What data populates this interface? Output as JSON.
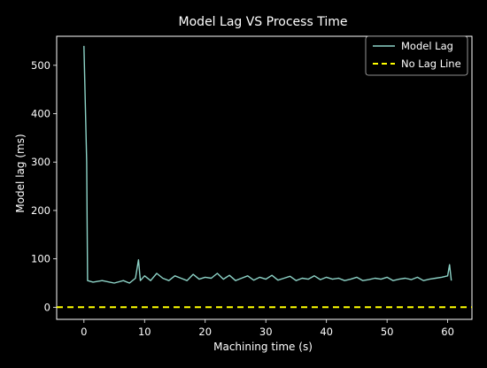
{
  "chart_data": {
    "type": "line",
    "title": "Model Lag VS Process Time",
    "xlabel": "Machining time (s)",
    "ylabel": "Model lag (ms)",
    "xlim": [
      -4.5,
      64
    ],
    "ylim": [
      -25,
      560
    ],
    "xticks": [
      0,
      10,
      20,
      30,
      40,
      50,
      60
    ],
    "yticks": [
      0,
      100,
      200,
      300,
      400,
      500
    ],
    "grid": false,
    "legend_position": "top-right",
    "background": "#000000",
    "series": [
      {
        "name": "Model Lag",
        "color": "#8dd3c7",
        "style": "solid",
        "x": [
          0,
          0.45,
          0.6,
          1.5,
          3,
          5,
          6.5,
          7.5,
          8.5,
          9.0,
          9.3,
          10,
          11,
          12,
          13,
          14,
          15,
          16,
          17,
          18,
          19,
          20,
          21,
          22,
          23,
          24,
          25,
          26,
          27,
          28,
          29,
          30,
          31,
          32,
          33,
          34,
          35,
          36,
          37,
          38,
          39,
          40,
          41,
          42,
          43,
          44,
          45,
          46,
          47,
          48,
          49,
          50,
          51,
          52,
          53,
          54,
          55,
          56,
          57,
          58,
          59,
          60,
          60.3,
          60.6
        ],
        "y": [
          540,
          300,
          55,
          52,
          55,
          50,
          55,
          50,
          60,
          98,
          55,
          65,
          55,
          70,
          60,
          55,
          65,
          60,
          55,
          68,
          58,
          62,
          60,
          70,
          58,
          66,
          55,
          60,
          65,
          56,
          62,
          58,
          66,
          56,
          60,
          64,
          55,
          60,
          58,
          65,
          57,
          62,
          58,
          60,
          55,
          58,
          62,
          55,
          57,
          60,
          58,
          62,
          55,
          58,
          60,
          57,
          62,
          55,
          58,
          60,
          62,
          65,
          88,
          55
        ]
      },
      {
        "name": "No Lag Line",
        "color": "#ffff00",
        "style": "dashed",
        "x": [
          -4.5,
          64
        ],
        "y": [
          0,
          0
        ]
      }
    ]
  }
}
